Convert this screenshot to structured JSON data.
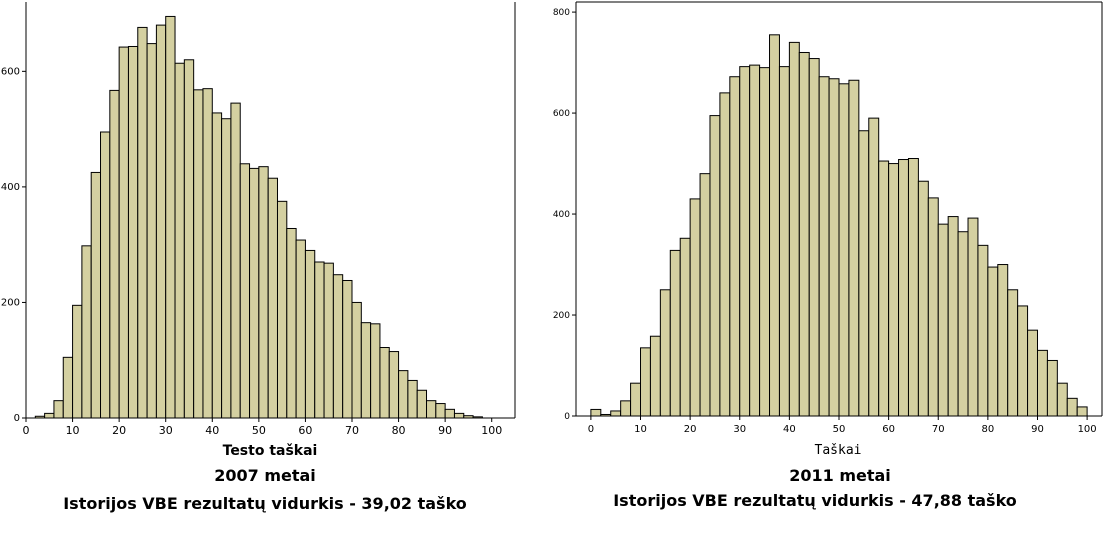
{
  "chart_data": [
    {
      "type": "bar",
      "xlabel": "Testo taškai",
      "ylabel": "",
      "year_label": "2007 metai",
      "subtitle": "Istorijos VBE rezultatų vidurkis - 39,02 taško",
      "xlim": [
        0,
        105
      ],
      "ylim": [
        0,
        720
      ],
      "xticks": [
        0,
        10,
        20,
        30,
        40,
        50,
        60,
        70,
        80,
        90,
        100
      ],
      "yticks": [
        0,
        200,
        400,
        600
      ],
      "bin_width": 2,
      "bin_start": 2,
      "values": [
        3,
        8,
        30,
        105,
        195,
        298,
        425,
        495,
        567,
        642,
        643,
        676,
        648,
        680,
        695,
        614,
        620,
        568,
        570,
        528,
        518,
        545,
        440,
        432,
        435,
        415,
        375,
        328,
        308,
        290,
        270,
        268,
        248,
        238,
        200,
        165,
        163,
        122,
        115,
        82,
        65,
        48,
        30,
        25,
        15,
        8,
        4,
        2
      ],
      "bar_color": "#d4d0a1",
      "grid": false
    },
    {
      "type": "bar",
      "xlabel": "Taškai",
      "ylabel": "",
      "year_label": "2011 metai",
      "subtitle": "Istorijos VBE rezultatų vidurkis - 47,88 taško",
      "xlim": [
        -3,
        103
      ],
      "ylim": [
        0,
        820
      ],
      "xticks": [
        0,
        10,
        20,
        30,
        40,
        50,
        60,
        70,
        80,
        90,
        100
      ],
      "yticks": [
        0,
        200,
        400,
        600,
        800
      ],
      "bin_width": 2,
      "bin_start": 0,
      "values": [
        13,
        3,
        10,
        30,
        65,
        135,
        158,
        250,
        328,
        352,
        430,
        480,
        595,
        640,
        672,
        692,
        695,
        690,
        755,
        692,
        740,
        720,
        708,
        672,
        668,
        658,
        665,
        565,
        590,
        505,
        500,
        508,
        510,
        465,
        432,
        380,
        395,
        365,
        392,
        338,
        295,
        300,
        250,
        218,
        170,
        130,
        110,
        65,
        35,
        18
      ],
      "bar_color": "#d4d0a1",
      "grid": false
    }
  ]
}
